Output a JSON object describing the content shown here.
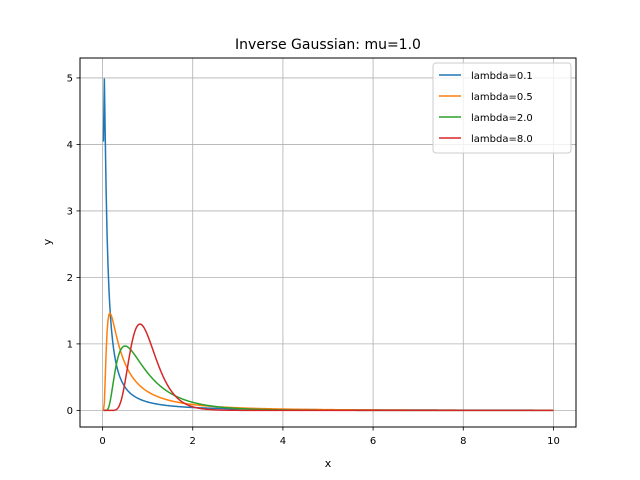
{
  "chart_data": {
    "type": "line",
    "title": "Inverse Gaussian:  mu=1.0",
    "xlabel": "x",
    "ylabel": "y",
    "xlim": [
      -0.5,
      10.5
    ],
    "ylim": [
      -0.25,
      5.3
    ],
    "xticks": [
      0,
      2,
      4,
      6,
      8,
      10
    ],
    "yticks": [
      0,
      1,
      2,
      3,
      4,
      5
    ],
    "grid": true,
    "legend_position": "top-right",
    "mu": 1.0,
    "x_range": [
      0.02,
      10.0
    ],
    "series": [
      {
        "name": "lambda=0.1",
        "lambda": 0.1,
        "color": "#1f77b4"
      },
      {
        "name": "lambda=0.5",
        "lambda": 0.5,
        "color": "#ff7f0e"
      },
      {
        "name": "lambda=2.0",
        "lambda": 2.0,
        "color": "#2ca02c"
      },
      {
        "name": "lambda=8.0",
        "lambda": 8.0,
        "color": "#d62728"
      }
    ]
  }
}
